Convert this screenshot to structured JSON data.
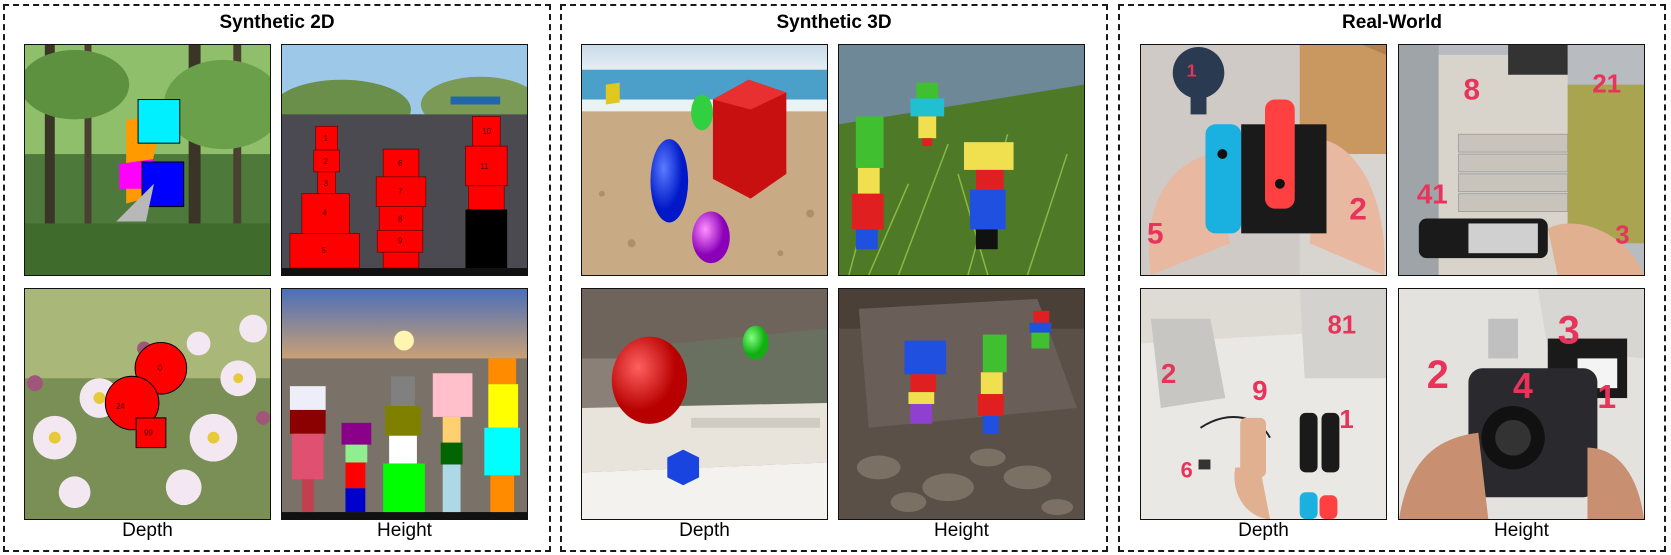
{
  "panels": [
    {
      "title": "Synthetic 2D",
      "col_labels": [
        "Depth",
        "Height"
      ],
      "image_labels": {
        "height_top": [
          "1",
          "2",
          "3",
          "4",
          "5",
          "6",
          "7",
          "8",
          "9",
          "10",
          "11"
        ],
        "depth_bottom": [
          "0",
          "24",
          "99"
        ]
      }
    },
    {
      "title": "Synthetic 3D",
      "col_labels": [
        "Depth",
        "Height"
      ]
    },
    {
      "title": "Real-World",
      "col_labels": [
        "Depth",
        "Height"
      ],
      "image_labels": {
        "depth_top": [
          "1",
          "5",
          "2"
        ],
        "height_top": [
          "8",
          "21",
          "41",
          "3"
        ],
        "depth_bottom": [
          "81",
          "2",
          "9",
          "1",
          "6"
        ],
        "height_bottom": [
          "2",
          "4",
          "3",
          "1"
        ]
      }
    }
  ],
  "colors": {
    "red": "#ff0000",
    "cyan": "#00f0ff",
    "blue": "#0000ff",
    "magenta": "#ff00ff",
    "orange": "#ff9a00",
    "handwriting": "#e8335a"
  }
}
